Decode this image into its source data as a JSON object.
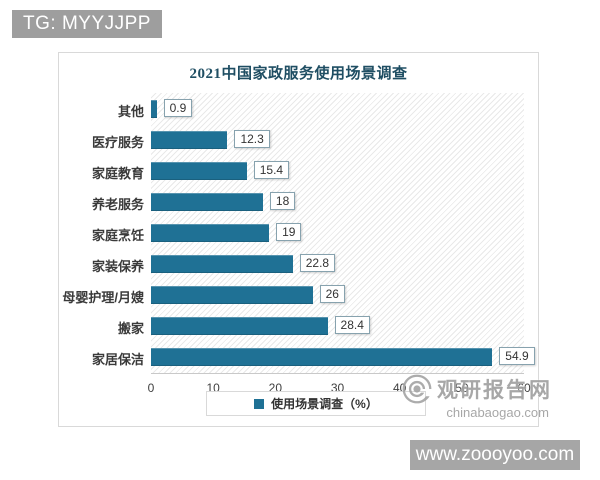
{
  "page": {
    "tg_badge": "TG: MYYJJPP",
    "bottom_banner": "www.zoooyoo.com"
  },
  "watermark": {
    "site_name": "观研报告网",
    "site_url": "chinabaogao.com"
  },
  "colors": {
    "bar": "#1f7195",
    "title": "#1f4e63",
    "badge_gray": "#9e9e9e",
    "banner_gray": "#a6a6a6",
    "watermark_gray": "#a0a0a0"
  },
  "chart_data": {
    "type": "bar",
    "orientation": "horizontal",
    "title": "2021中国家政服务使用场景调查",
    "legend_label": "使用场景调查（%）",
    "legend_position": "bottom",
    "categories": [
      "其他",
      "医疗服务",
      "家庭教育",
      "养老服务",
      "家庭烹饪",
      "家装保养",
      "母婴护理/月嫂",
      "搬家",
      "家居保洁"
    ],
    "values": [
      0.9,
      12.3,
      15.4,
      18,
      19,
      22.8,
      26,
      28.4,
      54.9
    ],
    "xlim": [
      0,
      60
    ],
    "x_ticks": [
      0,
      10,
      20,
      30,
      40,
      50,
      60
    ],
    "grid": false,
    "bar_color": "#1f7195"
  }
}
